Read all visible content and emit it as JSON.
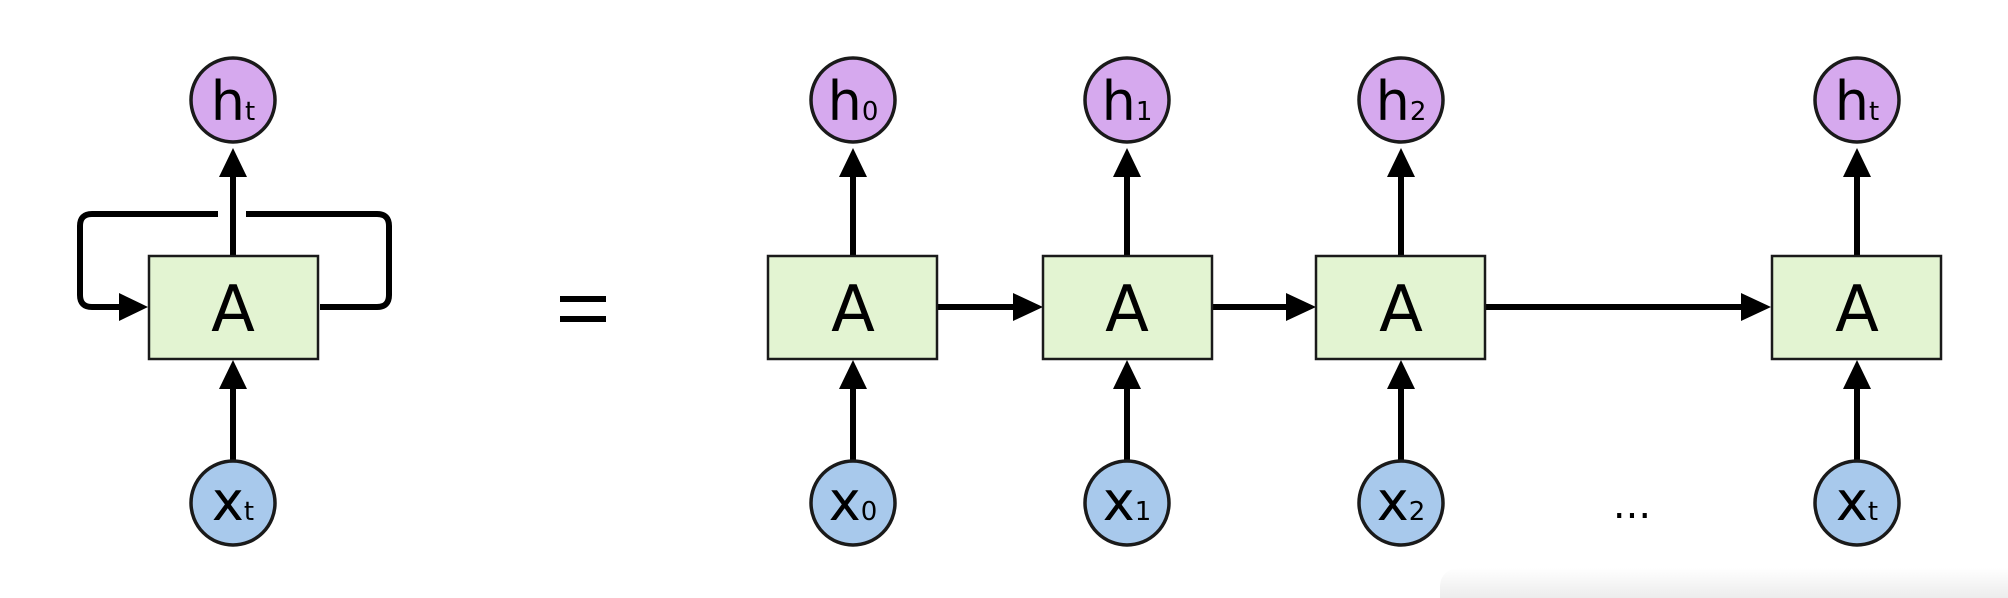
{
  "cells": {
    "label": "A"
  },
  "folded": {
    "output": {
      "letter": "h",
      "sub": "t"
    },
    "input": {
      "letter": "x",
      "sub": "t"
    }
  },
  "unrolled": [
    {
      "output": {
        "letter": "h",
        "sub": "0"
      },
      "input": {
        "letter": "x",
        "sub": "0"
      }
    },
    {
      "output": {
        "letter": "h",
        "sub": "1"
      },
      "input": {
        "letter": "x",
        "sub": "1"
      }
    },
    {
      "output": {
        "letter": "h",
        "sub": "2"
      },
      "input": {
        "letter": "x",
        "sub": "2"
      }
    },
    {
      "output": {
        "letter": "h",
        "sub": "t"
      },
      "input": {
        "letter": "x",
        "sub": "t"
      }
    }
  ],
  "ellipsis": "...",
  "colors": {
    "cell_fill": "#e3f4d2",
    "hidden_fill": "#d6a9ee",
    "input_fill": "#a8c9ec",
    "stroke": "#000000"
  }
}
